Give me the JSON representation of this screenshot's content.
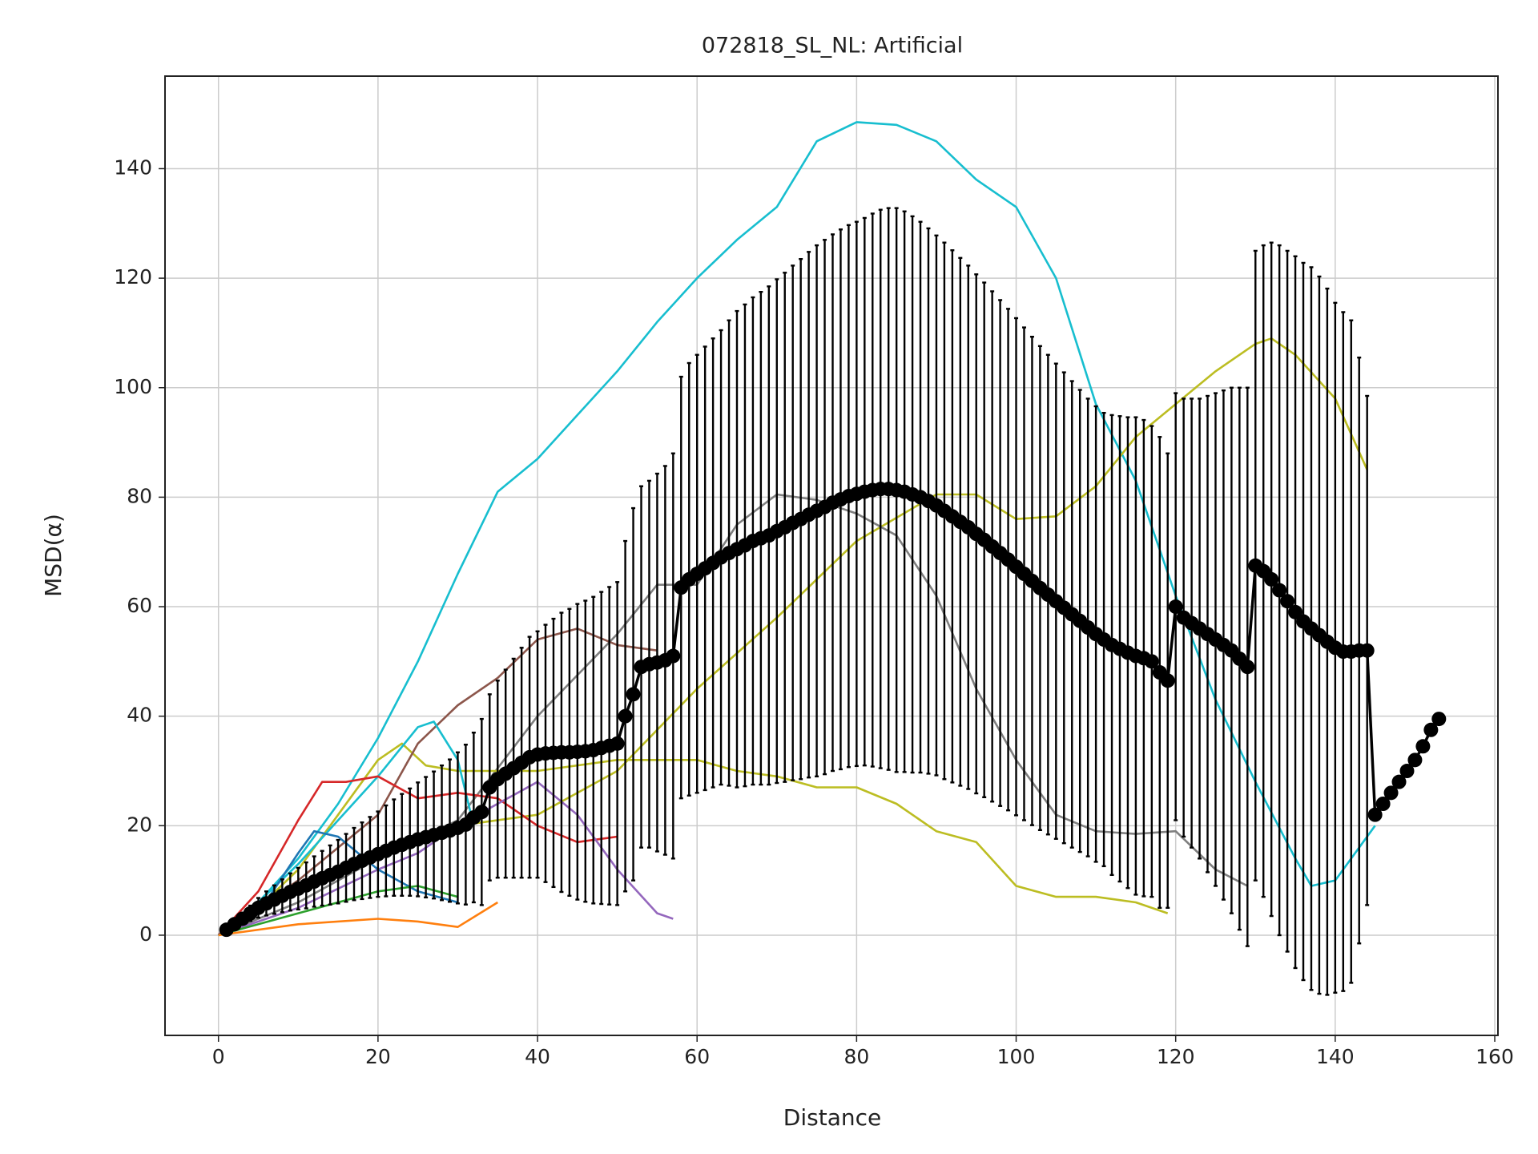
{
  "chart_data": {
    "type": "line",
    "title": "072818_SL_NL: Artificial",
    "x_label": "Distance",
    "y_label": "MSD(α)",
    "xlim": [
      -6.7,
      160.4
    ],
    "ylim": [
      -18.3,
      156.9
    ],
    "xticks": [
      0,
      20,
      40,
      60,
      80,
      100,
      120,
      140,
      160
    ],
    "yticks": [
      0,
      20,
      40,
      60,
      80,
      100,
      120,
      140
    ],
    "grid": true,
    "series": [
      {
        "color": "#17becf",
        "x": [
          0,
          5,
          10,
          15,
          20,
          25,
          30,
          35,
          40,
          45,
          50,
          55,
          60,
          65,
          70,
          75,
          80,
          85,
          90,
          95,
          100,
          105,
          110,
          115,
          120,
          125,
          130,
          135,
          137,
          140,
          145
        ],
        "values": [
          0,
          6,
          14,
          24,
          36,
          50,
          66,
          81,
          87,
          95,
          103,
          112,
          120,
          127,
          133,
          145,
          148.5,
          148,
          145,
          138,
          133,
          120,
          97,
          83,
          62,
          43,
          28,
          14,
          9,
          10,
          20
        ]
      },
      {
        "color": "#bcbd22",
        "x": [
          0,
          5,
          10,
          20,
          30,
          40,
          50,
          60,
          70,
          80,
          90,
          95,
          100,
          105,
          110,
          115,
          120,
          125,
          130,
          132,
          135,
          140,
          144
        ],
        "values": [
          0,
          5,
          9,
          15,
          20,
          22,
          30,
          45,
          58,
          72,
          80.5,
          80.5,
          76,
          76.5,
          82,
          91,
          97,
          103,
          108,
          109,
          106,
          98,
          85
        ]
      },
      {
        "color": "#7f7f7f",
        "x": [
          0,
          10,
          20,
          30,
          40,
          50,
          55,
          60,
          65,
          70,
          75,
          80,
          85,
          90,
          95,
          100,
          105,
          110,
          115,
          120,
          125,
          129
        ],
        "values": [
          0,
          6,
          14,
          21,
          40,
          55,
          64,
          64,
          75,
          80.5,
          79.5,
          77,
          73,
          62,
          45,
          32,
          22,
          19,
          18.5,
          19,
          12,
          9
        ]
      },
      {
        "color": "#bcbd22",
        "x": [
          0,
          5,
          10,
          15,
          20,
          23,
          26,
          30,
          40,
          50,
          55,
          60,
          65,
          70,
          75,
          80,
          85,
          90,
          95,
          100,
          105,
          110,
          115,
          119
        ],
        "values": [
          0,
          5,
          12,
          22,
          32,
          35,
          31,
          30,
          30,
          32,
          32,
          32,
          30,
          29,
          27,
          27,
          24,
          19,
          17,
          9,
          7,
          7,
          6,
          4
        ]
      },
      {
        "color": "#8c564b",
        "x": [
          0,
          10,
          20,
          25,
          30,
          35,
          40,
          45,
          50,
          55
        ],
        "values": [
          0,
          10,
          22,
          35,
          42,
          47,
          54,
          56,
          53,
          52
        ]
      },
      {
        "color": "#17becf",
        "x": [
          0,
          5,
          10,
          15,
          20,
          25,
          27,
          30,
          32
        ],
        "values": [
          0,
          6,
          13,
          21,
          29,
          38,
          39,
          32,
          20
        ]
      },
      {
        "color": "#d62728",
        "x": [
          0,
          5,
          10,
          13,
          16,
          20,
          25,
          30,
          35,
          40,
          45,
          50
        ],
        "values": [
          0,
          8,
          21,
          28,
          28,
          29,
          25,
          26,
          25,
          20,
          17,
          18
        ]
      },
      {
        "color": "#9467bd",
        "x": [
          0,
          10,
          20,
          25,
          30,
          40,
          45,
          50,
          55,
          57
        ],
        "values": [
          0,
          5,
          12,
          15,
          20,
          28,
          22,
          12,
          4,
          3
        ]
      },
      {
        "color": "#1f77b4",
        "x": [
          0,
          5,
          10,
          12,
          15,
          20,
          25,
          30
        ],
        "values": [
          0,
          4,
          15,
          19,
          18,
          12,
          8,
          6
        ]
      },
      {
        "color": "#2ca02c",
        "x": [
          0,
          5,
          10,
          15,
          20,
          25,
          30
        ],
        "values": [
          0,
          2,
          4,
          6,
          8,
          9,
          7
        ]
      },
      {
        "color": "#ff7f0e",
        "x": [
          0,
          10,
          20,
          25,
          30,
          35
        ],
        "values": [
          0,
          2,
          3,
          2.5,
          1.5,
          6
        ]
      }
    ],
    "mean": {
      "color": "#000000",
      "x": [
        1,
        2,
        3,
        4,
        5,
        6,
        7,
        8,
        9,
        10,
        11,
        12,
        13,
        14,
        15,
        16,
        17,
        18,
        19,
        20,
        21,
        22,
        23,
        24,
        25,
        26,
        27,
        28,
        29,
        30,
        31,
        32,
        33,
        34,
        35,
        36,
        37,
        38,
        39,
        40,
        41,
        42,
        43,
        44,
        45,
        46,
        47,
        48,
        49,
        50,
        51,
        52,
        53,
        54,
        55,
        56,
        57,
        58,
        59,
        60,
        61,
        62,
        63,
        64,
        65,
        66,
        67,
        68,
        69,
        70,
        71,
        72,
        73,
        74,
        75,
        76,
        77,
        78,
        79,
        80,
        81,
        82,
        83,
        84,
        85,
        86,
        87,
        88,
        89,
        90,
        91,
        92,
        93,
        94,
        95,
        96,
        97,
        98,
        99,
        100,
        101,
        102,
        103,
        104,
        105,
        106,
        107,
        108,
        109,
        110,
        111,
        112,
        113,
        114,
        115,
        116,
        117,
        118,
        119,
        120,
        121,
        122,
        123,
        124,
        125,
        126,
        127,
        128,
        129,
        130,
        131,
        132,
        133,
        134,
        135,
        136,
        137,
        138,
        139,
        140,
        141,
        142,
        143,
        144,
        145,
        146,
        147,
        148,
        149,
        150,
        151,
        152,
        153
      ],
      "values": [
        1,
        2,
        3,
        4,
        5,
        5.8,
        6.5,
        7.2,
        7.9,
        8.5,
        9.1,
        9.8,
        10.4,
        11,
        11.6,
        12.3,
        13,
        13.6,
        14.2,
        14.8,
        15.4,
        16,
        16.5,
        17,
        17.5,
        17.9,
        18.3,
        18.7,
        19.1,
        19.6,
        20.2,
        21.5,
        22.5,
        27,
        28.5,
        29.5,
        30.5,
        31.5,
        32.5,
        33,
        33.2,
        33.3,
        33.4,
        33.4,
        33.5,
        33.6,
        33.8,
        34.2,
        34.6,
        35,
        40,
        44,
        49,
        49.5,
        49.8,
        50.2,
        51,
        63.5,
        65,
        66,
        67,
        68,
        69,
        69.8,
        70.5,
        71.2,
        72,
        72.5,
        73,
        73.8,
        74.5,
        75.3,
        76,
        76.8,
        77.5,
        78.2,
        79,
        79.6,
        80.2,
        80.6,
        81,
        81.3,
        81.5,
        81.5,
        81.3,
        81,
        80.5,
        80,
        79.3,
        78.5,
        77.5,
        76.5,
        75.5,
        74.5,
        73.3,
        72.2,
        71,
        69.8,
        68.6,
        67.3,
        66,
        64.7,
        63.4,
        62.2,
        61,
        59.8,
        58.6,
        57.4,
        56.2,
        55,
        54,
        53,
        52.3,
        51.6,
        51,
        50.6,
        50,
        48,
        46.5,
        60,
        58,
        57,
        56,
        55,
        54,
        53,
        52,
        50.5,
        49,
        67.5,
        66.5,
        65,
        63,
        61,
        59,
        57.3,
        56,
        54.8,
        53.6,
        52.5,
        51.8,
        51.8,
        52,
        52,
        22,
        24,
        26,
        28,
        30,
        32,
        34.5,
        37.5,
        39.5
      ],
      "errors": [
        0.3,
        0.6,
        1,
        1.4,
        1.8,
        2.2,
        2.6,
        3,
        3.4,
        3.8,
        4.2,
        4.6,
        5,
        5.4,
        5.8,
        6.2,
        6.6,
        7,
        7.4,
        7.8,
        8.3,
        8.8,
        9.3,
        9.8,
        10.4,
        11,
        11.6,
        12.3,
        13,
        13.8,
        14.6,
        15.5,
        17,
        17,
        18,
        19,
        20,
        21,
        22,
        22.5,
        23.5,
        24.5,
        25.5,
        26.2,
        27,
        27.5,
        28,
        28.5,
        29,
        29.5,
        32,
        34,
        33,
        33.5,
        34.5,
        35.5,
        37,
        38.5,
        39.5,
        40,
        40.5,
        41,
        41.5,
        42.5,
        43.5,
        44,
        44.5,
        45,
        45.5,
        46,
        46.5,
        47,
        47.5,
        48,
        48.5,
        48.8,
        49,
        49.3,
        49.5,
        49.7,
        50,
        50.5,
        51,
        51.3,
        51.5,
        51.2,
        50.8,
        50.3,
        49.8,
        49.3,
        49,
        48.6,
        48.2,
        47.8,
        47.4,
        47,
        46.6,
        46.2,
        45.8,
        45.4,
        45,
        44.6,
        44.2,
        43.8,
        43.4,
        43,
        42.6,
        42.2,
        41.8,
        41.6,
        41.4,
        42,
        42.5,
        43,
        43.6,
        43.5,
        43,
        43,
        41.5,
        39,
        40,
        41,
        42,
        43.5,
        45,
        46.5,
        48,
        49.5,
        51,
        57.5,
        59.5,
        61.5,
        63,
        64,
        65,
        65.5,
        66,
        65.5,
        64.5,
        63,
        62,
        60.5,
        53.5,
        46.5,
        0,
        0,
        0,
        0,
        0,
        0,
        0,
        0,
        0
      ]
    }
  }
}
